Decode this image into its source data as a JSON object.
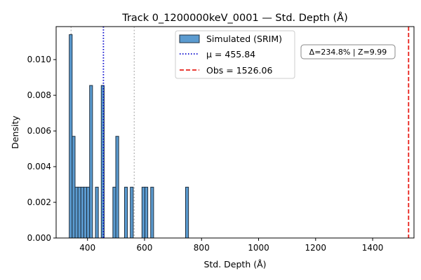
{
  "chart_data": {
    "type": "bar",
    "title": "Track 0_1200000keV_0001 — Std. Depth (Å)",
    "xlabel": "Std. Depth (Å)",
    "ylabel": "Density",
    "xlim": [
      290,
      1545
    ],
    "ylim": [
      0,
      0.01185
    ],
    "x_ticks": [
      400,
      600,
      800,
      1000,
      1200,
      1400
    ],
    "y_ticks": [
      0.0,
      0.002,
      0.004,
      0.006,
      0.008,
      0.01
    ],
    "y_tick_labels": [
      "0.000",
      "0.002",
      "0.004",
      "0.006",
      "0.008",
      "0.010"
    ],
    "bin_width": 10.2,
    "bins": [
      {
        "left": 336,
        "density": 0.0114
      },
      {
        "left": 346.2,
        "density": 0.0057
      },
      {
        "left": 356.4,
        "density": 0.00285
      },
      {
        "left": 366.6,
        "density": 0.00285
      },
      {
        "left": 376.8,
        "density": 0.00285
      },
      {
        "left": 387,
        "density": 0.00285
      },
      {
        "left": 397.2,
        "density": 0.00285
      },
      {
        "left": 407.4,
        "density": 0.00855
      },
      {
        "left": 427.8,
        "density": 0.00285
      },
      {
        "left": 448.2,
        "density": 0.00855
      },
      {
        "left": 489,
        "density": 0.00285
      },
      {
        "left": 499.2,
        "density": 0.0057
      },
      {
        "left": 529.8,
        "density": 0.00285
      },
      {
        "left": 550.2,
        "density": 0.00285
      },
      {
        "left": 591,
        "density": 0.00285
      },
      {
        "left": 601.2,
        "density": 0.00285
      },
      {
        "left": 621.6,
        "density": 0.00285
      },
      {
        "left": 744,
        "density": 0.00285
      }
    ],
    "mean": 455.84,
    "sigma_lines": [
      342.5,
      564
    ],
    "observed": 1526.06,
    "legend": {
      "position": "top-center",
      "entries": [
        "Simulated (SRIM)",
        "μ = 455.84",
        "Obs = 1526.06"
      ]
    },
    "annotation": "Δ=234.8% | Z=9.99",
    "colors": {
      "bar_fill": "#5b9bd0",
      "bar_edge": "#1f2f3f",
      "mean_line": "#0000cc",
      "obs_line": "#e8201a",
      "sigma_line": "#bbbbbb"
    }
  }
}
